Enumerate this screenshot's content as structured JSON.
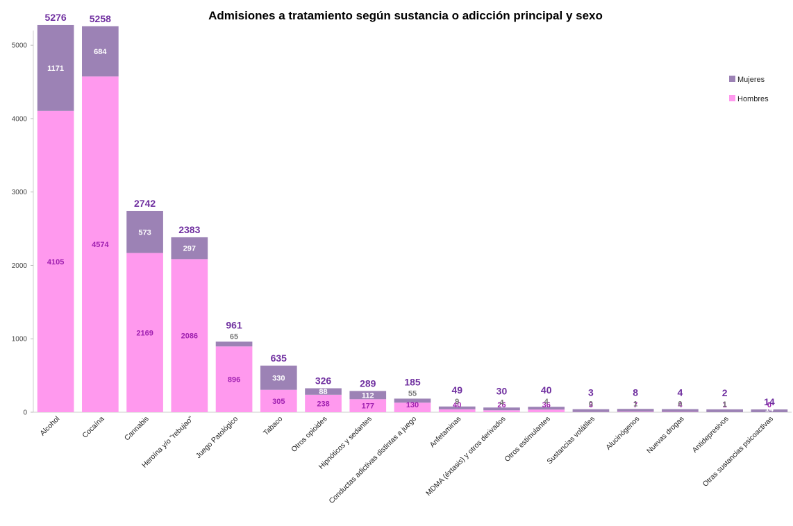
{
  "chart_data": {
    "type": "bar",
    "stacked": true,
    "title": "Admisiones a tratamiento según sustancia o adicción principal y sexo",
    "categories": [
      "Alcohol",
      "Cocaína",
      "Cannabis",
      "Heroína y/o \"rebujao\"",
      "Juego Patológico",
      "Tabaco",
      "Otros opioides",
      "Hipnóticos y sedantes",
      "Conductas adictivas distintas a juego",
      "Anfetaminas",
      "MDMA (éxtasis) y otros derivados",
      "Otros estimulantes",
      "Sustancias volátiles",
      "Alucinógenos",
      "Nuevas drogas",
      "Antidepresivos",
      "Otras sustancias psicoactivas"
    ],
    "series": [
      {
        "name": "Hombres",
        "color": "#ff99ee",
        "label_color": "#a020b0",
        "values": [
          4105,
          4574,
          2169,
          2086,
          896,
          305,
          238,
          177,
          130,
          40,
          26,
          36,
          3,
          7,
          4,
          1,
          0
        ]
      },
      {
        "name": "Mujeres",
        "color": "#9c82b5",
        "label_color": "#ffffff",
        "values": [
          1171,
          684,
          573,
          297,
          65,
          330,
          88,
          112,
          55,
          9,
          4,
          4,
          0,
          1,
          0,
          1,
          14
        ]
      }
    ],
    "totals": [
      5276,
      5258,
      2742,
      2383,
      961,
      635,
      326,
      289,
      185,
      49,
      30,
      40,
      3,
      8,
      4,
      2,
      14
    ],
    "yticks": [
      "0",
      "1000",
      "2000",
      "3000",
      "4000",
      "5000"
    ],
    "ylim": [
      0,
      5200
    ],
    "legend_position": "right",
    "total_label_color": "#7030a0",
    "grid": false
  }
}
